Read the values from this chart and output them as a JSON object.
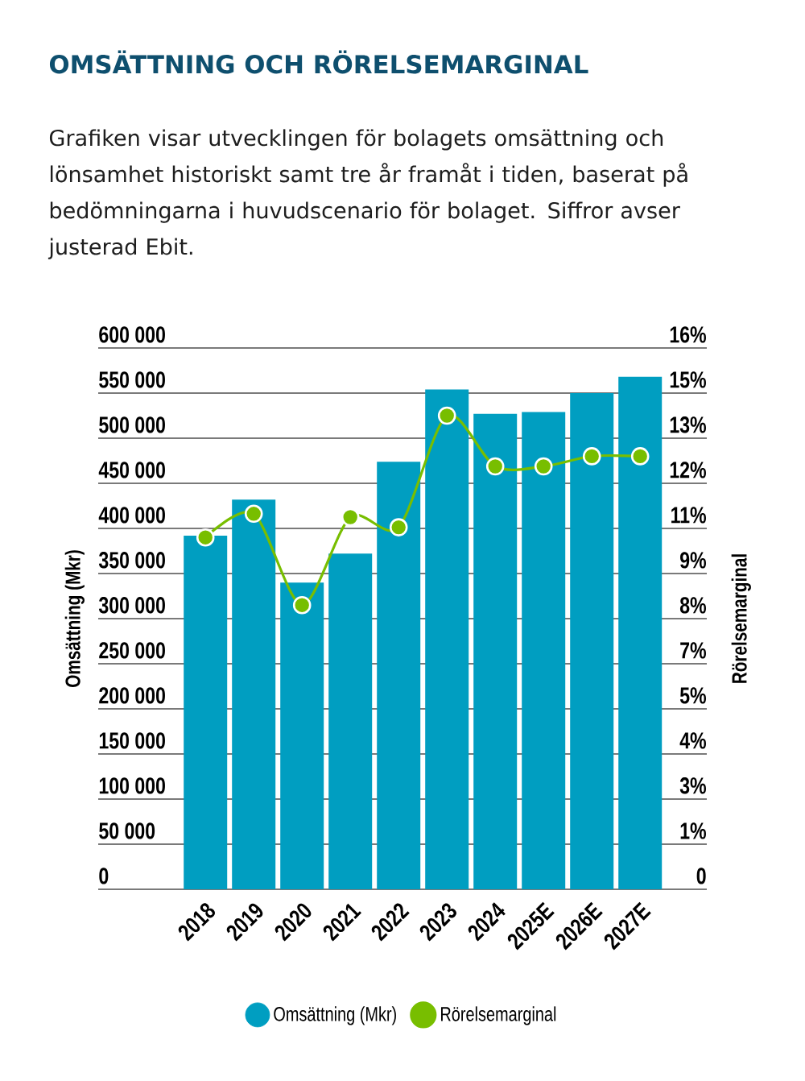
{
  "chart_data": {
    "type": "bar",
    "title": "OMSÄTTNING OCH RÖRELSEMARGINAL",
    "subtitle": "Grafiken visar utvecklingen för bolagets omsättning och lönsamhet historiskt samt tre år framåt i tiden, baserat på bedömningarna i huvudscenario för bolaget. Siffror avser justerad Ebit.",
    "categories": [
      "2018",
      "2019",
      "2020",
      "2021",
      "2022",
      "2023",
      "2024",
      "2025E",
      "2026E",
      "2027E"
    ],
    "ylabel": "Omsättning (Mkr)",
    "y2label": "Rörelsemarginal",
    "series": [
      {
        "name": "Omsättning (Mkr)",
        "color": "#009ec1",
        "values": [
          392000,
          432000,
          340000,
          372000,
          474000,
          554000,
          527000,
          529000,
          550000,
          568000
        ]
      },
      {
        "name": "Rörelsemarginal",
        "type": "line",
        "axis": "y2",
        "color": "#78be00",
        "marker": "circle",
        "values": [
          10.4,
          11.1,
          8.4,
          11.0,
          10.7,
          14.0,
          12.5,
          12.5,
          12.8,
          12.8
        ]
      }
    ],
    "ylim": [
      0,
      600000
    ],
    "yticks": [
      0,
      {
        "value": 50000,
        "label": "50 000"
      },
      {
        "value": 100000,
        "label": "100 000"
      },
      {
        "value": 150000,
        "label": "150 000"
      },
      {
        "value": 200000,
        "label": "200 000"
      },
      {
        "value": 250000,
        "label": "250 000"
      },
      {
        "value": 300000,
        "label": "300 000"
      },
      {
        "value": 350000,
        "label": "350 000"
      },
      {
        "value": 400000,
        "label": "400 000"
      },
      {
        "value": 450000,
        "label": "450 000"
      },
      {
        "value": 500000,
        "label": "500 000"
      },
      {
        "value": 550000,
        "label": "550 000"
      },
      {
        "value": 600000,
        "label": "600 000"
      }
    ],
    "y2lim": [
      0,
      16
    ],
    "y2ticks": [
      0,
      {
        "value": 1.3333,
        "label": "1%"
      },
      {
        "value": 2.6667,
        "label": "3%"
      },
      {
        "value": 4,
        "label": "4%"
      },
      {
        "value": 5.3333,
        "label": "5%"
      },
      {
        "value": 6.6667,
        "label": "7%"
      },
      {
        "value": 8,
        "label": "8%"
      },
      {
        "value": 9.3333,
        "label": "9%"
      },
      {
        "value": 10.6667,
        "label": "11%"
      },
      {
        "value": 12,
        "label": "12%"
      },
      {
        "value": 13.3333,
        "label": "13%"
      },
      {
        "value": 14.6667,
        "label": "15%"
      },
      {
        "value": 16,
        "label": "16%"
      }
    ],
    "grid": "y",
    "legend": "bottom"
  }
}
